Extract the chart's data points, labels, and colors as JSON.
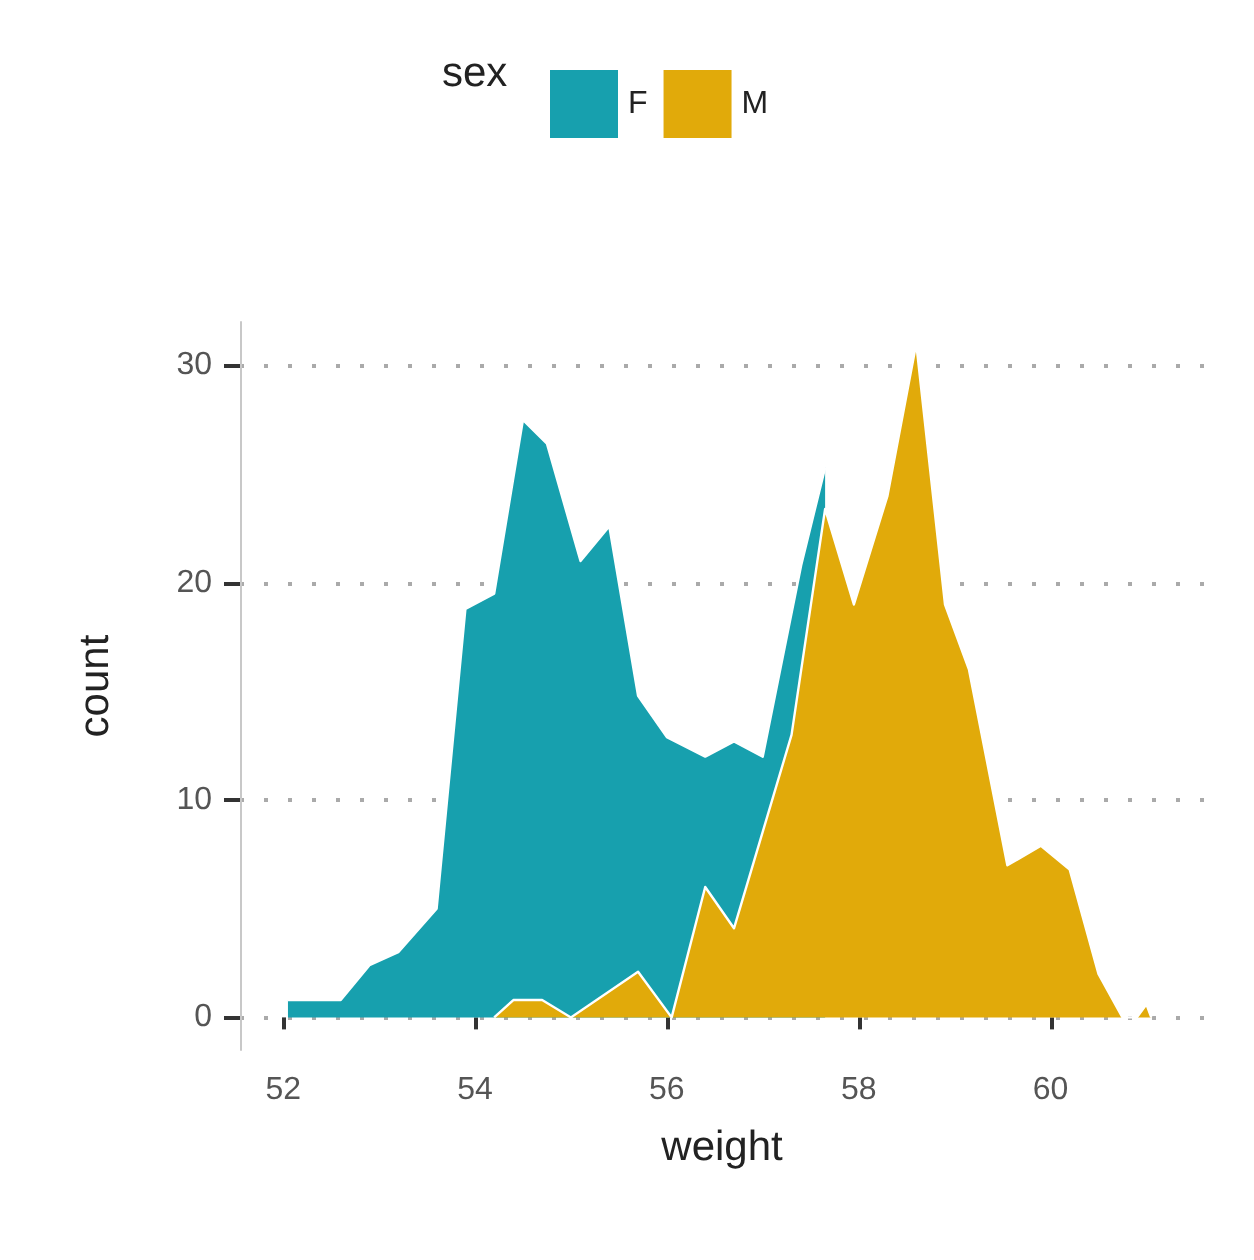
{
  "chart_data": {
    "type": "area",
    "xlabel": "weight",
    "ylabel": "count",
    "legend_title": "sex",
    "legend": "top",
    "grid": "y",
    "xlim": [
      51.55,
      61.6
    ],
    "xticks": [
      52,
      54,
      56,
      58,
      60
    ],
    "ylim": [
      -1.5,
      32
    ],
    "yticks": [
      0,
      10,
      20,
      30
    ],
    "series": [
      {
        "name": "F",
        "color": "#17a0ae",
        "x": [
          52.05,
          52.6,
          52.9,
          53.2,
          53.6,
          53.9,
          54.2,
          54.5,
          54.75,
          55.1,
          55.4,
          55.7,
          56.0,
          56.4,
          56.7,
          57.0,
          57.4,
          57.65
        ],
        "values": [
          0.8,
          0.8,
          2.4,
          3,
          5,
          18.8,
          19.5,
          27.5,
          26.4,
          21,
          22.6,
          14.8,
          12.9,
          12,
          12.7,
          12,
          20.8,
          25.3
        ]
      },
      {
        "name": "M",
        "color": "#e1aa0a",
        "x": [
          54.2,
          54.4,
          54.7,
          55.0,
          55.7,
          56.05,
          56.4,
          56.7,
          57.3,
          57.65,
          57.95,
          58.3,
          58.6,
          58.9,
          59.15,
          59.55,
          59.9,
          60.2,
          60.5,
          60.75,
          60.9,
          61.0,
          61.05
        ],
        "values": [
          0,
          0.8,
          0.8,
          0,
          2.1,
          0,
          6,
          4.1,
          13,
          23.4,
          19,
          24,
          31,
          19,
          16,
          7,
          7.9,
          6.8,
          2,
          0,
          0,
          0.6,
          0
        ]
      }
    ]
  }
}
